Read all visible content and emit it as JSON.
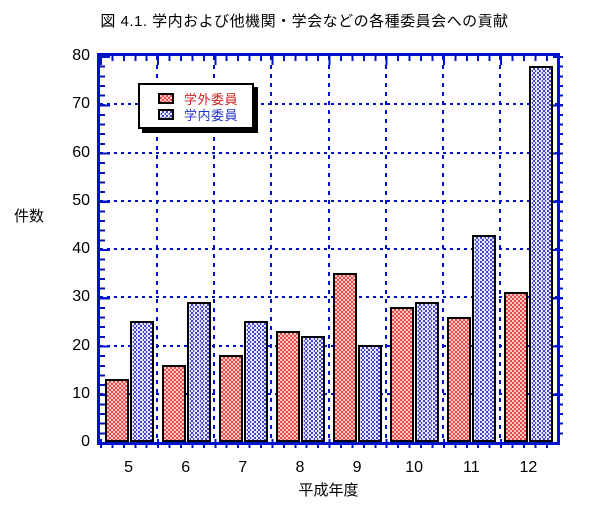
{
  "title": "図 4.1. 学内および他機関・学会などの各種委員会への貢献",
  "colors": {
    "axis_blue": "#0011cc",
    "bar_border": "#000000",
    "soto_fill": "#ffbcbc",
    "soto_dot": "#e64d4d",
    "soto_label_color": "#cc2222",
    "uchi_fill": "#e9e9f9",
    "uchi_dot": "#4444c8",
    "uchi_label_color": "#2233cc"
  },
  "chart_data": {
    "type": "bar",
    "title": "図 4.1. 学内および他機関・学会などの各種委員会への貢献",
    "xlabel": "平成年度",
    "ylabel": "件数",
    "categories": [
      "5",
      "6",
      "7",
      "8",
      "9",
      "10",
      "11",
      "12"
    ],
    "series": [
      {
        "name": "学外委員",
        "key": "soto",
        "values": [
          13,
          16,
          18,
          23,
          35,
          28,
          26,
          31
        ]
      },
      {
        "name": "学内委員",
        "key": "uchi",
        "values": [
          25,
          29,
          25,
          22,
          20,
          29,
          43,
          78
        ]
      }
    ],
    "ylim": [
      0,
      80
    ],
    "ytick_step": 10,
    "ytick_labels": [
      "0",
      "10",
      "20",
      "30",
      "40",
      "50",
      "60",
      "70",
      "80"
    ],
    "yminor_step": 2,
    "grid": "horizontal dotted gridlines at each major y tick; vertical dash-dot separators between year groups",
    "legend_position": "upper-left inside plot, white box with black border and drop shadow"
  }
}
